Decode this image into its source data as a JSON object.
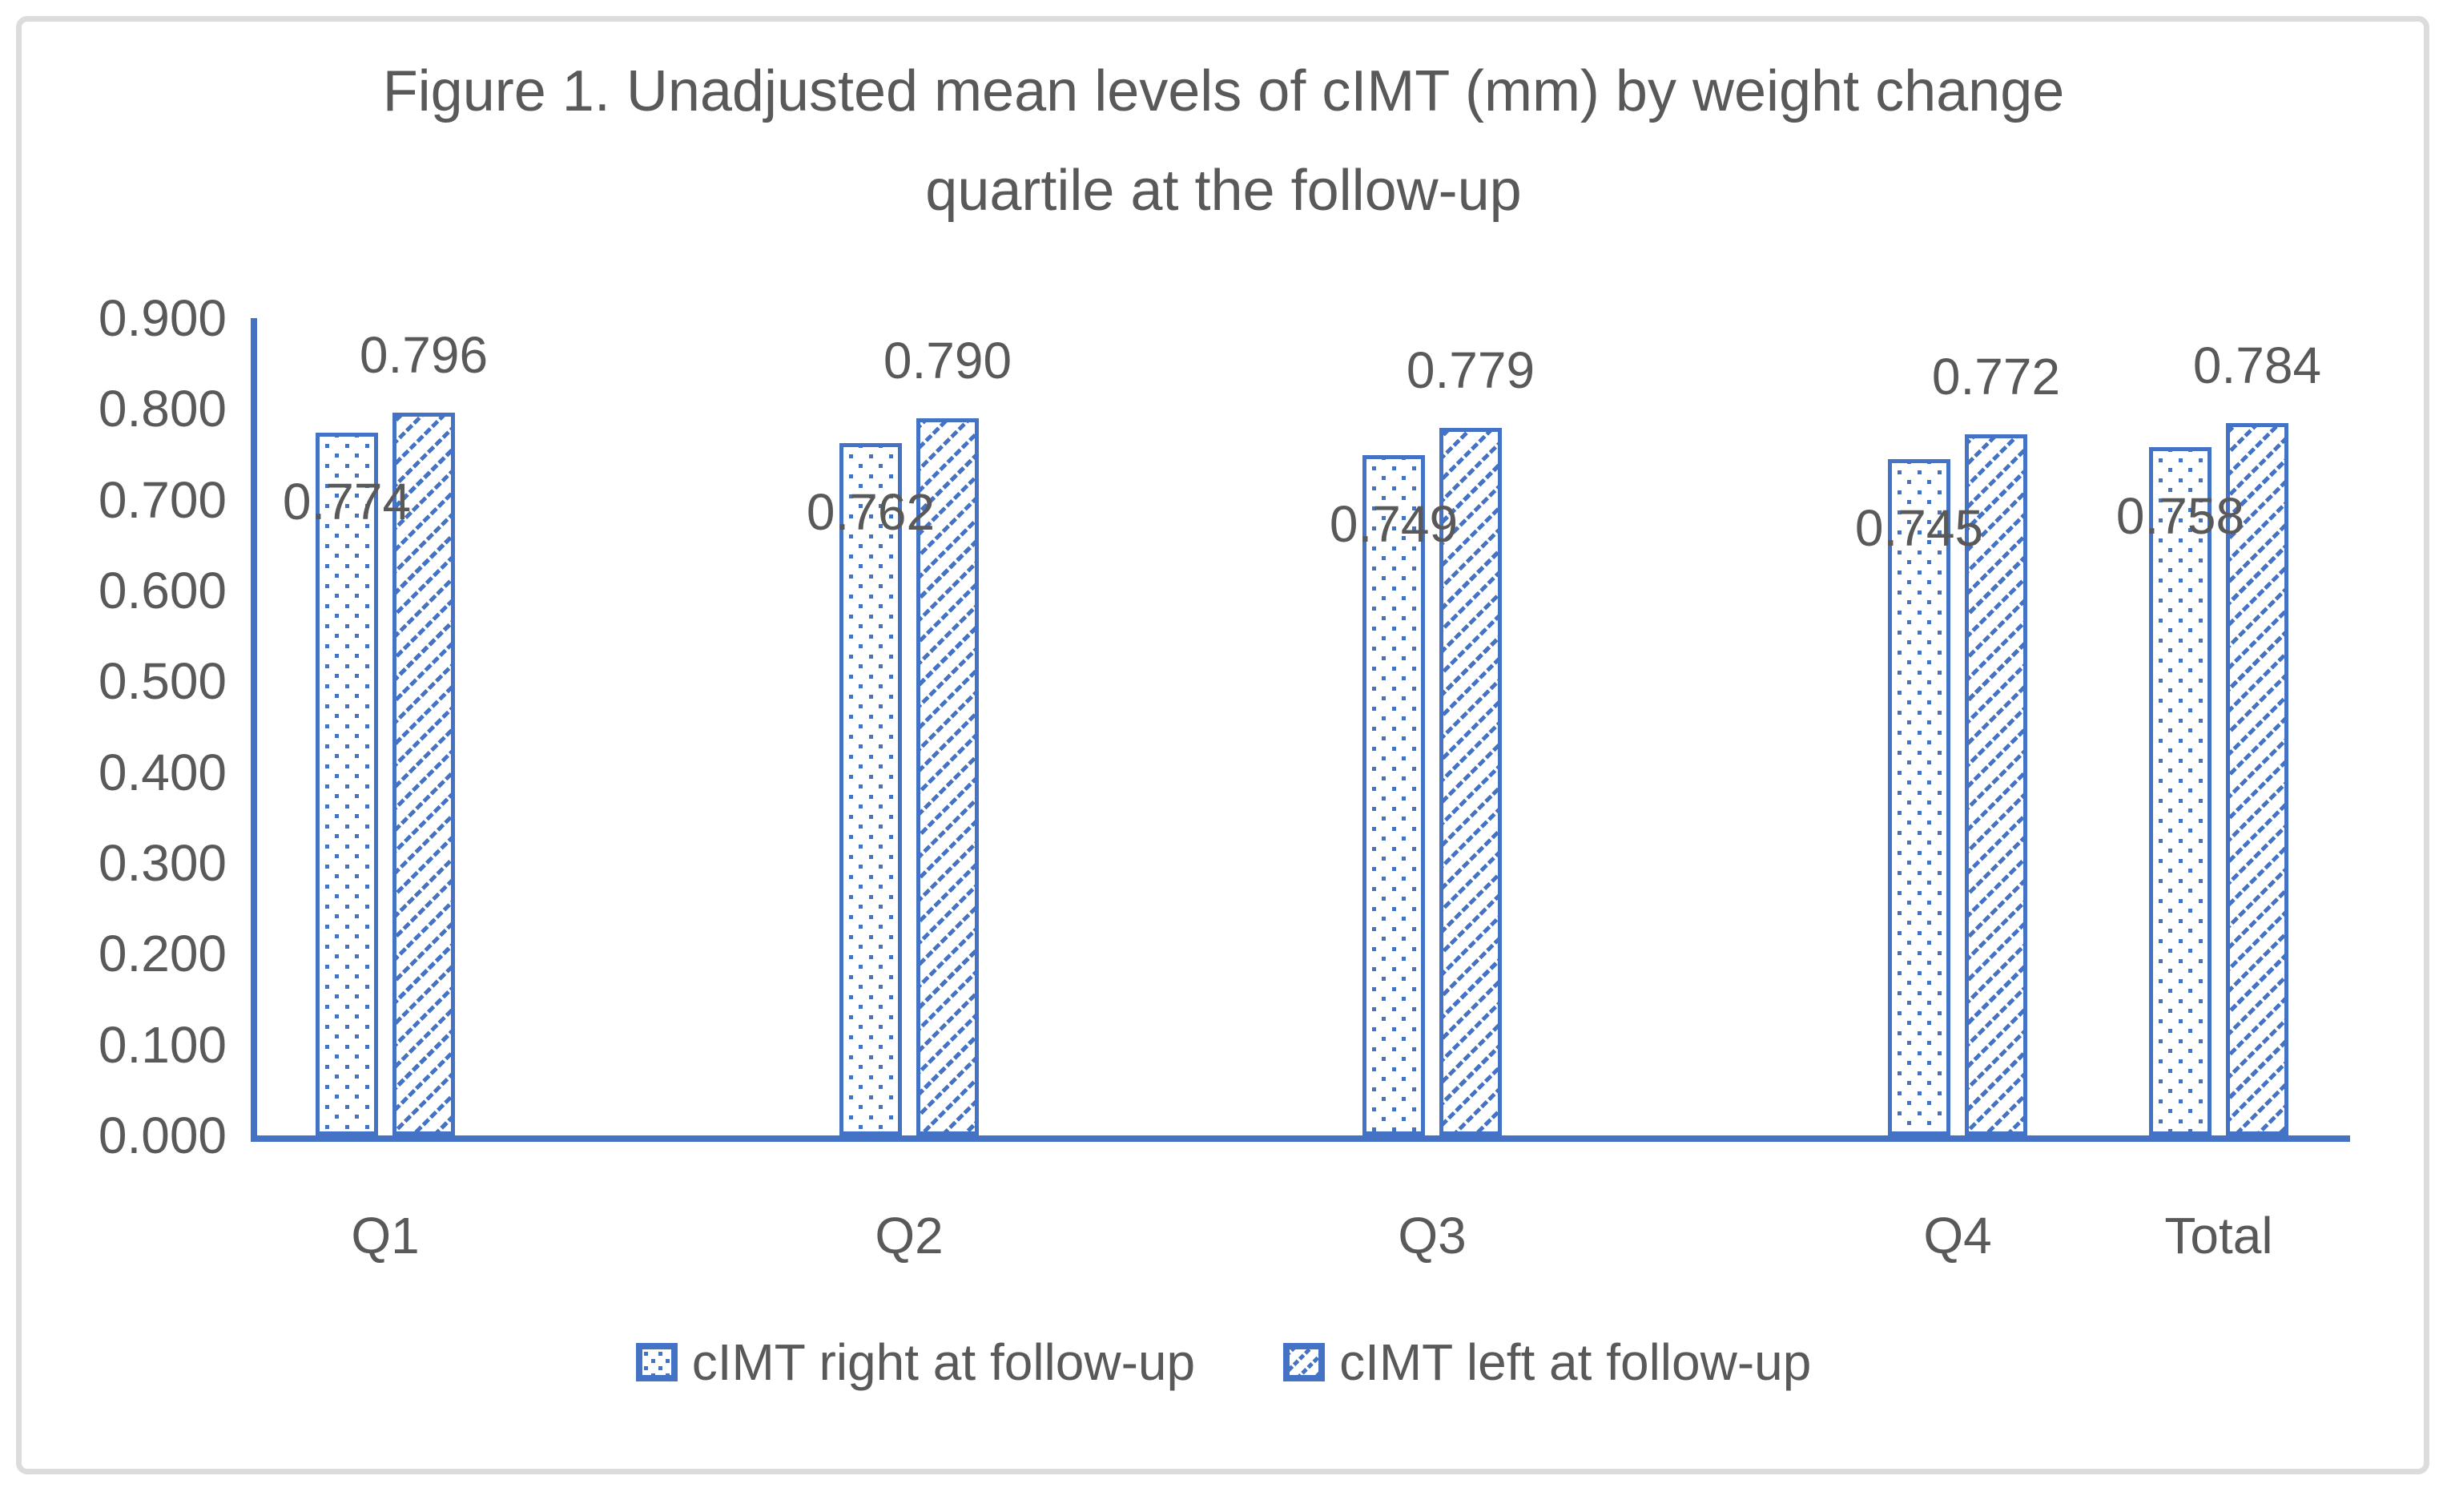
{
  "chart_data": {
    "type": "bar",
    "title": "Figure 1. Unadjusted mean levels of cIMT (mm) by weight change quartile at the follow-up",
    "title_lines": [
      "Figure 1. Unadjusted mean levels of cIMT (mm) by weight change",
      "quartile at the follow-up"
    ],
    "categories": [
      "Q1",
      "Q2",
      "Q3",
      "Q4",
      "Total"
    ],
    "series": [
      {
        "name": "cIMT right at follow-up",
        "pattern": "dots",
        "label_position": "inside-top",
        "values": [
          0.774,
          0.762,
          0.749,
          0.745,
          0.758
        ],
        "labels": [
          "0.774",
          "0.762",
          "0.749",
          "0.745",
          "0.758"
        ]
      },
      {
        "name": "cIMT left at follow-up",
        "pattern": "diagonal-hatch",
        "label_position": "outside-top",
        "values": [
          0.796,
          0.79,
          0.779,
          0.772,
          0.784
        ],
        "labels": [
          "0.796",
          "0.790",
          "0.779",
          "0.772",
          "0.784"
        ]
      }
    ],
    "xlabel": "",
    "ylabel": "",
    "ylim": [
      0,
      0.9
    ],
    "ytick_step": 0.1,
    "ytick_labels": [
      "0.000",
      "0.100",
      "0.200",
      "0.300",
      "0.400",
      "0.500",
      "0.600",
      "0.700",
      "0.800",
      "0.900"
    ],
    "grid": false,
    "legend_position": "bottom",
    "colors": {
      "series_blue": "#4472C4",
      "text_gray": "#595959",
      "frame_border": "#DCDCDE",
      "background": "#FFFFFF"
    }
  }
}
